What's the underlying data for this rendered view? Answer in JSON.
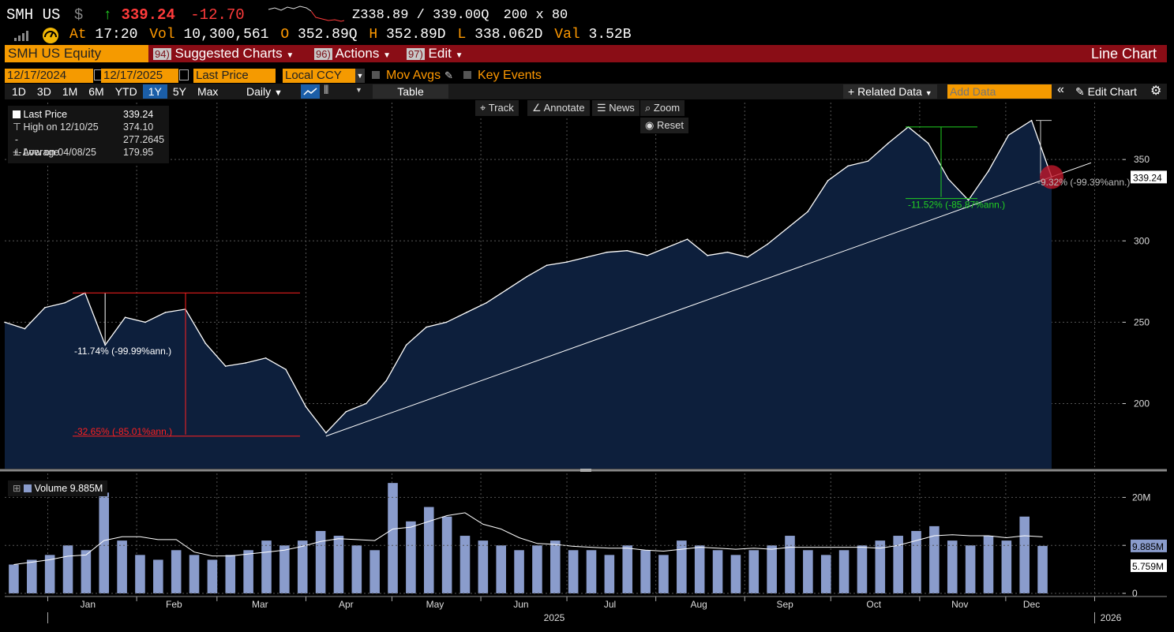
{
  "header": {
    "ticker": "SMH US",
    "currency_symbol": "$",
    "up_arrow": "↑",
    "last": "339.24",
    "change": "-12.70",
    "bid_ask": "Z338.89 / 339.00Q",
    "size": "200 x 80",
    "at_label": "At",
    "time": "17:20",
    "vol_label": "Vol",
    "volume": "10,300,561",
    "open_label": "O",
    "open": "352.89Q",
    "high_label": "H",
    "high": "352.89D",
    "low_label": "L",
    "low": "338.062D",
    "val_label": "Val",
    "value": "3.52B"
  },
  "menu": {
    "security": "SMH US Equity",
    "suggested_num": "94)",
    "suggested": "Suggested Charts",
    "actions_num": "96)",
    "actions": "Actions",
    "edit_num": "97)",
    "edit": "Edit",
    "chart_type": "Line Chart"
  },
  "controls": {
    "start_date": "12/17/2024",
    "end_date": "12/17/2025",
    "field": "Last Price",
    "currency": "Local CCY",
    "mov_avgs": "Mov Avgs",
    "key_events": "Key Events",
    "periods": [
      "1D",
      "3D",
      "1M",
      "6M",
      "YTD",
      "1Y",
      "5Y",
      "Max"
    ],
    "selected_period": "1Y",
    "frequency": "Daily",
    "table": "Table",
    "related_data": "+ Related Data",
    "add_data_placeholder": "Add Data",
    "edit_chart": "Edit Chart"
  },
  "tools": {
    "track": "Track",
    "annotate": "Annotate",
    "news": "News",
    "zoom": "Zoom",
    "reset": "Reset"
  },
  "legend": {
    "last_price_label": "Last Price",
    "last_price": "339.24",
    "high_label": "High on 12/10/25",
    "high": "374.10",
    "average_label": "Average",
    "average": "277.2645",
    "low_label": "Low on 04/08/25",
    "low": "179.95",
    "volume_label": "Volume",
    "volume": "9.885M"
  },
  "annotations": {
    "drop1": "-11.74% (-99.99%ann.)",
    "drop2": "-32.65% (-85.01%ann.)",
    "drop3": "-11.52% (-85.87%ann.)",
    "drop4": "-9.32% (-99.39%ann.)",
    "last_tag": "339.24",
    "vol_tag1": "9.885M",
    "vol_tag2": "5.759M"
  },
  "colors": {
    "area_fill": "#0d1f3c",
    "line": "#ffffff",
    "volume_bar": "#8a9ccc",
    "drawdown_red": "#ff2020",
    "drawdown_green": "#22d022",
    "menu_red": "#8a0d16",
    "field_orange": "#f59a00"
  },
  "chart_data": [
    {
      "type": "area",
      "title": "",
      "series_name": "Last Price",
      "ylim": [
        160,
        385
      ],
      "yticks": [
        200,
        250,
        300,
        350
      ],
      "x_months": [
        "Jan",
        "Feb",
        "Mar",
        "Apr",
        "May",
        "Jun",
        "Jul",
        "Aug",
        "Sep",
        "Oct",
        "Nov",
        "Dec"
      ],
      "x_year_labels": [
        "2025",
        "2026"
      ],
      "x": [
        "2024-12-17",
        "2024-12-24",
        "2024-12-31",
        "2025-01-07",
        "2025-01-14",
        "2025-01-21",
        "2025-01-28",
        "2025-02-04",
        "2025-02-11",
        "2025-02-18",
        "2025-02-25",
        "2025-03-04",
        "2025-03-11",
        "2025-03-18",
        "2025-03-25",
        "2025-04-01",
        "2025-04-08",
        "2025-04-15",
        "2025-04-22",
        "2025-04-29",
        "2025-05-06",
        "2025-05-13",
        "2025-05-20",
        "2025-05-27",
        "2025-06-03",
        "2025-06-10",
        "2025-06-17",
        "2025-06-24",
        "2025-07-01",
        "2025-07-08",
        "2025-07-15",
        "2025-07-22",
        "2025-07-29",
        "2025-08-05",
        "2025-08-12",
        "2025-08-19",
        "2025-08-26",
        "2025-09-02",
        "2025-09-09",
        "2025-09-16",
        "2025-09-23",
        "2025-09-30",
        "2025-10-07",
        "2025-10-14",
        "2025-10-21",
        "2025-10-28",
        "2025-11-04",
        "2025-11-11",
        "2025-11-18",
        "2025-11-25",
        "2025-12-02",
        "2025-12-10",
        "2025-12-17"
      ],
      "values": [
        250,
        246,
        259,
        262,
        268,
        236,
        253,
        250,
        256,
        258,
        237,
        223,
        225,
        228,
        221,
        198,
        182,
        195,
        200,
        214,
        236,
        247,
        250,
        256,
        262,
        270,
        278,
        285,
        287,
        290,
        293,
        294,
        291,
        296,
        301,
        291,
        293,
        290,
        298,
        308,
        318,
        337,
        346,
        349,
        360,
        370,
        360,
        338,
        325,
        343,
        365,
        374,
        339.24
      ]
    },
    {
      "type": "bar",
      "series_name": "Volume",
      "ylim": [
        0,
        25
      ],
      "yticks_labels": [
        "0",
        "10M",
        "20M"
      ],
      "unit": "M",
      "values": [
        6,
        7,
        8,
        10,
        9,
        21,
        11,
        8,
        7,
        9,
        8,
        7,
        8,
        9,
        11,
        10,
        11,
        13,
        12,
        10,
        9,
        23,
        15,
        18,
        16,
        12,
        11,
        10,
        9,
        10,
        11,
        9,
        9,
        8,
        10,
        9,
        8,
        11,
        10,
        9,
        8,
        9,
        10,
        12,
        9,
        8,
        9,
        10,
        11,
        12,
        13,
        14,
        11,
        10,
        12,
        11,
        16,
        9.885
      ]
    }
  ]
}
